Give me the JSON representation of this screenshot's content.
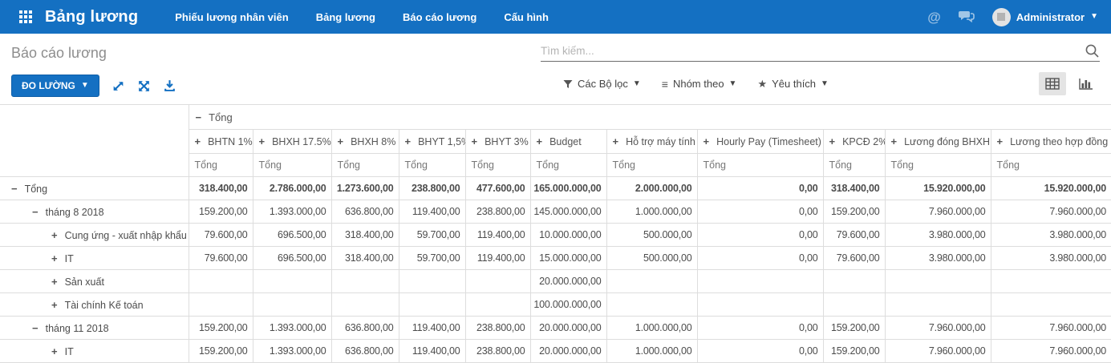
{
  "navbar": {
    "app_title": "Bảng lương",
    "menu_items": [
      {
        "label": "Phiếu lương nhân viên"
      },
      {
        "label": "Bảng lương"
      },
      {
        "label": "Báo cáo lương"
      },
      {
        "label": "Cấu hình"
      }
    ],
    "mentions_icon": "@",
    "user_name": "Administrator"
  },
  "control_panel": {
    "breadcrumb": "Báo cáo lương",
    "search": {
      "placeholder": "Tìm kiếm...",
      "value": ""
    },
    "measures_button": "ĐO LƯỜNG",
    "filters_button": "Các Bộ lọc",
    "groupby_button": "Nhóm theo",
    "favorites_button": "Yêu thích",
    "active_view": "pivot"
  },
  "pivot": {
    "column_group": {
      "label": "Tổng",
      "expanded": true
    },
    "aggregate_label": "Tổng",
    "measure_columns": [
      "BHTN 1%",
      "BHXH 17.5%",
      "BHXH 8%",
      "BHYT 1,5%",
      "BHYT 3%",
      "Budget",
      "Hỗ trợ máy tính",
      "Hourly Pay (Timesheet)",
      "KPCĐ 2%",
      "Lương đóng BHXH",
      "Lương theo hợp đồng"
    ],
    "rows": [
      {
        "label": "Tổng",
        "level": 0,
        "expanded": true,
        "total": true,
        "values": [
          "318.400,00",
          "2.786.000,00",
          "1.273.600,00",
          "238.800,00",
          "477.600,00",
          "165.000.000,00",
          "2.000.000,00",
          "0,00",
          "318.400,00",
          "15.920.000,00",
          "15.920.000,00"
        ]
      },
      {
        "label": "tháng 8 2018",
        "level": 1,
        "expanded": true,
        "total": false,
        "values": [
          "159.200,00",
          "1.393.000,00",
          "636.800,00",
          "119.400,00",
          "238.800,00",
          "145.000.000,00",
          "1.000.000,00",
          "0,00",
          "159.200,00",
          "7.960.000,00",
          "7.960.000,00"
        ]
      },
      {
        "label": "Cung ứng - xuất nhập khẩu",
        "level": 2,
        "expanded": false,
        "total": false,
        "values": [
          "79.600,00",
          "696.500,00",
          "318.400,00",
          "59.700,00",
          "119.400,00",
          "10.000.000,00",
          "500.000,00",
          "0,00",
          "79.600,00",
          "3.980.000,00",
          "3.980.000,00"
        ]
      },
      {
        "label": "IT",
        "level": 2,
        "expanded": false,
        "total": false,
        "values": [
          "79.600,00",
          "696.500,00",
          "318.400,00",
          "59.700,00",
          "119.400,00",
          "15.000.000,00",
          "500.000,00",
          "0,00",
          "79.600,00",
          "3.980.000,00",
          "3.980.000,00"
        ]
      },
      {
        "label": "Sản xuất",
        "level": 2,
        "expanded": false,
        "total": false,
        "values": [
          "",
          "",
          "",
          "",
          "",
          "20.000.000,00",
          "",
          "",
          "",
          "",
          ""
        ]
      },
      {
        "label": "Tài chính Kế toán",
        "level": 2,
        "expanded": false,
        "total": false,
        "values": [
          "",
          "",
          "",
          "",
          "",
          "100.000.000,00",
          "",
          "",
          "",
          "",
          ""
        ]
      },
      {
        "label": "tháng 11 2018",
        "level": 1,
        "expanded": true,
        "total": false,
        "values": [
          "159.200,00",
          "1.393.000,00",
          "636.800,00",
          "119.400,00",
          "238.800,00",
          "20.000.000,00",
          "1.000.000,00",
          "0,00",
          "159.200,00",
          "7.960.000,00",
          "7.960.000,00"
        ]
      },
      {
        "label": "IT",
        "level": 2,
        "expanded": false,
        "total": false,
        "values": [
          "159.200,00",
          "1.393.000,00",
          "636.800,00",
          "119.400,00",
          "238.800,00",
          "20.000.000,00",
          "1.000.000,00",
          "0,00",
          "159.200,00",
          "7.960.000,00",
          "7.960.000,00"
        ]
      }
    ]
  },
  "colors": {
    "navbar": "#1470c2",
    "accent": "#1470c2",
    "border": "#dddddd",
    "text": "#4c4c4c"
  }
}
